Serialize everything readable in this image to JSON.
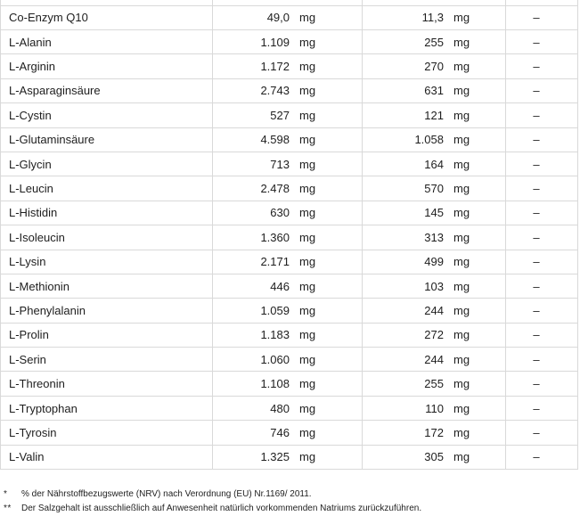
{
  "table": {
    "rows": [
      {
        "name": "Co-Enzym Q10",
        "value1": "49,0",
        "unit1": "mg",
        "value2": "11,3",
        "unit2": "mg",
        "value3": "–"
      },
      {
        "name": "L-Alanin",
        "value1": "1.109",
        "unit1": "mg",
        "value2": "255",
        "unit2": "mg",
        "value3": "–"
      },
      {
        "name": "L-Arginin",
        "value1": "1.172",
        "unit1": "mg",
        "value2": "270",
        "unit2": "mg",
        "value3": "–"
      },
      {
        "name": "L-Asparaginsäure",
        "value1": "2.743",
        "unit1": "mg",
        "value2": "631",
        "unit2": "mg",
        "value3": "–"
      },
      {
        "name": "L-Cystin",
        "value1": "527",
        "unit1": "mg",
        "value2": "121",
        "unit2": "mg",
        "value3": "–"
      },
      {
        "name": "L-Glutaminsäure",
        "value1": "4.598",
        "unit1": "mg",
        "value2": "1.058",
        "unit2": "mg",
        "value3": "–"
      },
      {
        "name": "L-Glycin",
        "value1": "713",
        "unit1": "mg",
        "value2": "164",
        "unit2": "mg",
        "value3": "–"
      },
      {
        "name": "L-Leucin",
        "value1": "2.478",
        "unit1": "mg",
        "value2": "570",
        "unit2": "mg",
        "value3": "–"
      },
      {
        "name": "L-Histidin",
        "value1": "630",
        "unit1": "mg",
        "value2": "145",
        "unit2": "mg",
        "value3": "–"
      },
      {
        "name": "L-Isoleucin",
        "value1": "1.360",
        "unit1": "mg",
        "value2": "313",
        "unit2": "mg",
        "value3": "–"
      },
      {
        "name": "L-Lysin",
        "value1": "2.171",
        "unit1": "mg",
        "value2": "499",
        "unit2": "mg",
        "value3": "–"
      },
      {
        "name": "L-Methionin",
        "value1": "446",
        "unit1": "mg",
        "value2": "103",
        "unit2": "mg",
        "value3": "–"
      },
      {
        "name": "L-Phenylalanin",
        "value1": "1.059",
        "unit1": "mg",
        "value2": "244",
        "unit2": "mg",
        "value3": "–"
      },
      {
        "name": "L-Prolin",
        "value1": "1.183",
        "unit1": "mg",
        "value2": "272",
        "unit2": "mg",
        "value3": "–"
      },
      {
        "name": "L-Serin",
        "value1": "1.060",
        "unit1": "mg",
        "value2": "244",
        "unit2": "mg",
        "value3": "–"
      },
      {
        "name": "L-Threonin",
        "value1": "1.108",
        "unit1": "mg",
        "value2": "255",
        "unit2": "mg",
        "value3": "–"
      },
      {
        "name": "L-Tryptophan",
        "value1": "480",
        "unit1": "mg",
        "value2": "110",
        "unit2": "mg",
        "value3": "–"
      },
      {
        "name": "L-Tyrosin",
        "value1": "746",
        "unit1": "mg",
        "value2": "172",
        "unit2": "mg",
        "value3": "–"
      },
      {
        "name": "L-Valin",
        "value1": "1.325",
        "unit1": "mg",
        "value2": "305",
        "unit2": "mg",
        "value3": "–"
      }
    ]
  },
  "footnotes": [
    {
      "marker": "*",
      "text": "% der Nährstoffbezugswerte (NRV) nach Verordnung (EU) Nr.1169/ 2011."
    },
    {
      "marker": "**",
      "text": "Der Salzgehalt ist ausschließlich auf Anwesenheit natürlich vorkommenden Natriums zurückzuführen."
    }
  ],
  "colors": {
    "border": "#d9d9d9",
    "text": "#1e1e1e",
    "background": "#ffffff"
  }
}
